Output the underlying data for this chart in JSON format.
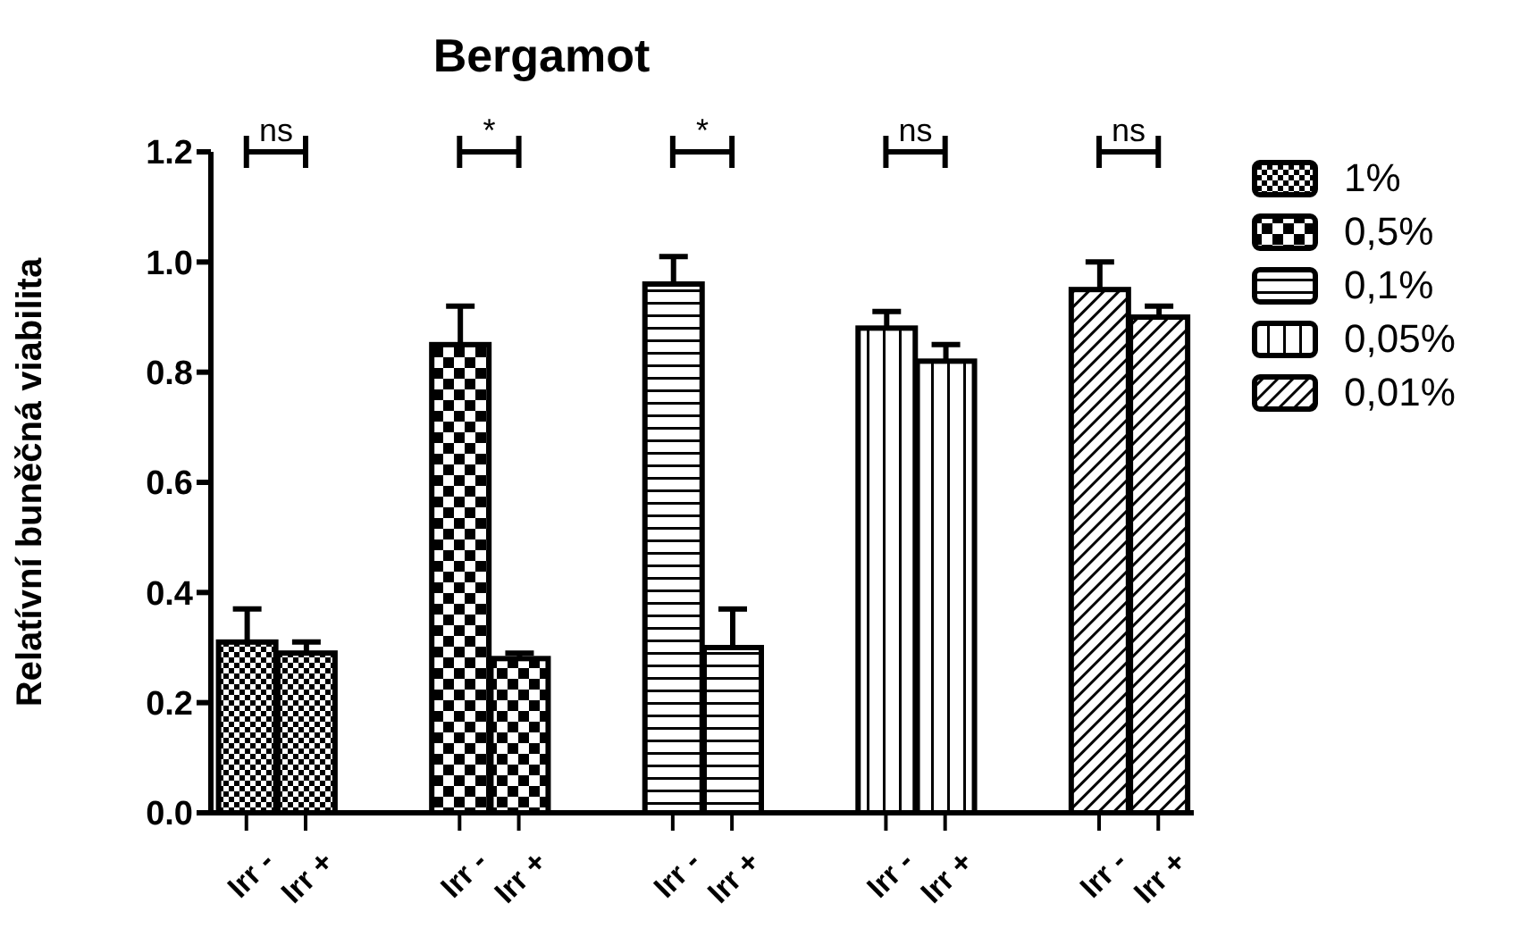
{
  "chart_data": {
    "type": "bar",
    "title": "Bergamot",
    "ylabel": "Relatívní buněčná viabilita",
    "categories": [
      "Irr -",
      "Irr +",
      "Irr -",
      "Irr +",
      "Irr -",
      "Irr +",
      "Irr -",
      "Irr +",
      "Irr -",
      "Irr +"
    ],
    "stacked": true,
    "series": [
      {
        "name": "1%",
        "color": "#000000",
        "values": [
          0.31,
          0.29,
          null,
          null,
          null,
          null,
          null,
          null,
          null,
          null
        ],
        "errors": [
          0.06,
          0.02,
          null,
          null,
          null,
          null,
          null,
          null,
          null,
          null
        ]
      },
      {
        "name": "0,5%",
        "color": "#000000",
        "values": [
          null,
          null,
          0.85,
          0.28,
          null,
          null,
          null,
          null,
          null,
          null
        ],
        "errors": [
          null,
          null,
          0.07,
          0.01,
          null,
          null,
          null,
          null,
          null,
          null
        ]
      },
      {
        "name": "0,1%",
        "color": "#000000",
        "values": [
          null,
          null,
          null,
          null,
          0.96,
          0.3,
          null,
          null,
          null,
          null
        ],
        "errors": [
          null,
          null,
          null,
          null,
          0.05,
          0.07,
          null,
          null,
          null,
          null
        ]
      },
      {
        "name": "0,05%",
        "color": "#000000",
        "values": [
          null,
          null,
          null,
          null,
          null,
          null,
          0.88,
          0.82,
          null,
          null
        ],
        "errors": [
          null,
          null,
          null,
          null,
          null,
          null,
          0.03,
          0.03,
          null,
          null
        ]
      },
      {
        "name": "0,01%",
        "color": "#000000",
        "values": [
          null,
          null,
          null,
          null,
          null,
          null,
          null,
          null,
          0.95,
          0.9
        ],
        "errors": [
          null,
          null,
          null,
          null,
          null,
          null,
          null,
          null,
          0.05,
          0.02
        ]
      }
    ],
    "ylim": [
      0,
      1.2
    ],
    "yticks": [
      {
        "value": 0,
        "label": "0.0"
      },
      {
        "value": 0.2,
        "label": "0.2"
      },
      {
        "value": 0.4,
        "label": "0.4"
      },
      {
        "value": 0.6,
        "label": "0.6"
      },
      {
        "value": 0.8,
        "label": "0.8"
      },
      {
        "value": 1,
        "label": "1.0"
      },
      {
        "value": 1.2,
        "label": "1.2"
      }
    ],
    "grid": false,
    "legend": "right",
    "annotations": [
      "ns",
      "*",
      "*",
      "ns",
      "ns"
    ]
  }
}
